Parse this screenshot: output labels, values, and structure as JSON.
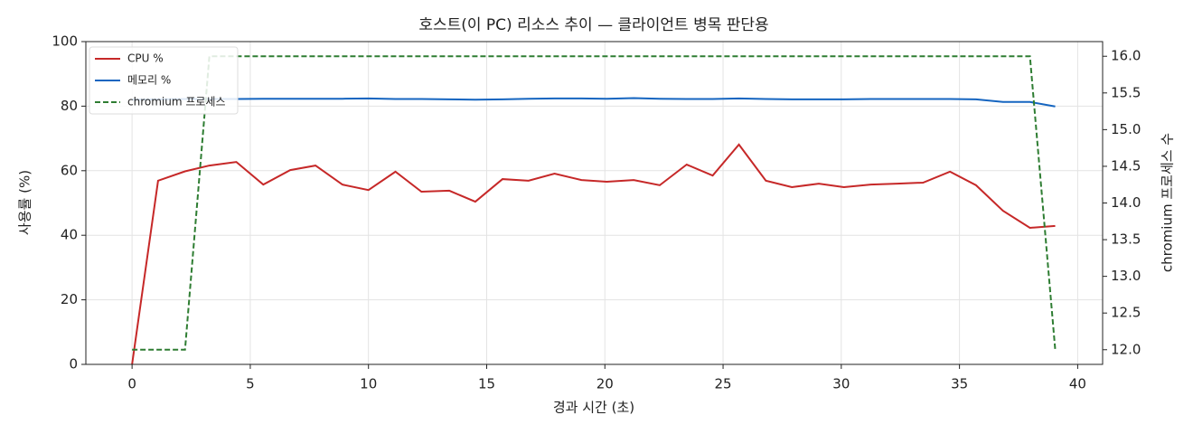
{
  "chart_data": {
    "type": "line",
    "title": "호스트(이 PC) 리소스 추이 — 클라이언트 병목 판단용",
    "xlabel": "경과 시간 (초)",
    "ylabel": "사용률 (%)",
    "y2label": "chromium 프로세스 수",
    "x": [
      0,
      1.1,
      2.24,
      3.27,
      4.41,
      5.55,
      6.69,
      7.76,
      8.9,
      10.0,
      11.14,
      12.24,
      13.42,
      14.52,
      15.67,
      16.77,
      17.87,
      19.01,
      20.08,
      21.22,
      22.32,
      23.46,
      24.56,
      25.67,
      26.81,
      27.91,
      29.05,
      30.11,
      31.25,
      32.36,
      33.46,
      34.6,
      35.7,
      36.84,
      37.98,
      39.05
    ],
    "series": [
      {
        "name": "CPU %",
        "color": "#c62828",
        "dash": false,
        "values": [
          0,
          56.9,
          59.8,
          61.6,
          62.7,
          55.7,
          60.2,
          61.6,
          55.7,
          54,
          59.7,
          53.5,
          53.8,
          50.4,
          57.4,
          56.9,
          59.1,
          57.1,
          56.6,
          57.1,
          55.5,
          61.9,
          58.5,
          68.1,
          56.9,
          54.9,
          56,
          54.9,
          55.7,
          56,
          56.3,
          59.7,
          55.5,
          47.6,
          42.3,
          42.9
        ]
      },
      {
        "name": "메모리 %",
        "color": "#1565c0",
        "dash": false,
        "values": [
          82,
          82.1,
          82.2,
          82.2,
          82.2,
          82.3,
          82.3,
          82.3,
          82.3,
          82.4,
          82.2,
          82.2,
          82.1,
          82,
          82.1,
          82.3,
          82.4,
          82.4,
          82.3,
          82.5,
          82.3,
          82.2,
          82.2,
          82.4,
          82.2,
          82.1,
          82.1,
          82.1,
          82.2,
          82.2,
          82.2,
          82.2,
          82.1,
          81.3,
          81.3,
          79.9
        ]
      },
      {
        "name": "chromium 프로세스",
        "color": "#2e7d32",
        "dash": true,
        "axis": "y2",
        "values": [
          12,
          12,
          12,
          16,
          16,
          16,
          16,
          16,
          16,
          16,
          16,
          16,
          16,
          16,
          16,
          16,
          16,
          16,
          16,
          16,
          16,
          16,
          16,
          16,
          16,
          16,
          16,
          16,
          16,
          16,
          16,
          16,
          16,
          16,
          16,
          12
        ]
      }
    ],
    "xlim": [
      -1.955,
      41.055
    ],
    "xticks": [
      0,
      5,
      10,
      15,
      20,
      25,
      30,
      35,
      40
    ],
    "ylim": [
      0,
      100
    ],
    "yticks": [
      0,
      20,
      40,
      60,
      80,
      100
    ],
    "y2lim": [
      11.8,
      16.2
    ],
    "y2ticks": [
      {
        "value": 12,
        "label": "12.0"
      },
      12.5,
      {
        "value": 13,
        "label": "13.0"
      },
      13.5,
      {
        "value": 14,
        "label": "14.0"
      },
      14.5,
      {
        "value": 15,
        "label": "15.0"
      },
      15.5,
      {
        "value": 16,
        "label": "16.0"
      }
    ],
    "grid": true,
    "legend": "upper-left"
  }
}
